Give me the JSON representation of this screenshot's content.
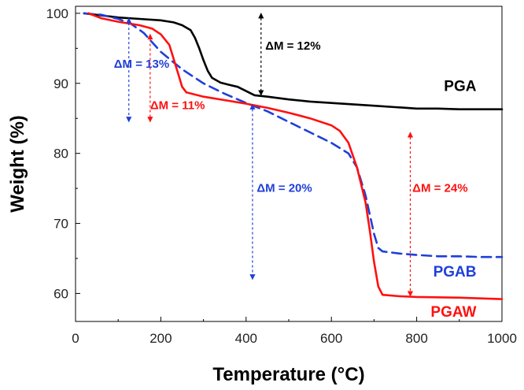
{
  "chart_data": {
    "type": "line",
    "title": "",
    "xlabel": "Temperature (°C)",
    "ylabel": "Weight (%)",
    "xlim": [
      0,
      1000
    ],
    "ylim": [
      56,
      101
    ],
    "x_ticks": [
      0,
      200,
      400,
      600,
      800,
      1000
    ],
    "y_ticks": [
      60,
      70,
      80,
      90,
      100
    ],
    "grid": false,
    "legend": "none",
    "series": [
      {
        "name": "PGA",
        "color": "#000000",
        "dash": "solid",
        "x": [
          20,
          100,
          150,
          200,
          230,
          250,
          270,
          280,
          290,
          300,
          310,
          320,
          340,
          360,
          380,
          400,
          420,
          450,
          500,
          550,
          600,
          650,
          700,
          750,
          800,
          850,
          900,
          950,
          1000
        ],
        "y": [
          100.0,
          99.4,
          99.2,
          99.0,
          98.7,
          98.3,
          97.6,
          96.5,
          95.0,
          93.3,
          91.8,
          90.8,
          90.1,
          89.8,
          89.5,
          88.9,
          88.3,
          88.1,
          87.7,
          87.4,
          87.2,
          87.0,
          86.8,
          86.6,
          86.4,
          86.4,
          86.3,
          86.3,
          86.3
        ]
      },
      {
        "name": "PGAB",
        "color": "#1f3fd9",
        "dash": "dashed",
        "x": [
          20,
          60,
          100,
          130,
          160,
          200,
          250,
          300,
          350,
          400,
          450,
          500,
          550,
          600,
          640,
          660,
          680,
          700,
          710,
          720,
          760,
          800,
          850,
          900,
          950,
          1000
        ],
        "y": [
          100.0,
          99.8,
          99.2,
          98.5,
          97.2,
          94.5,
          92.0,
          90.0,
          88.5,
          87.2,
          86.0,
          84.5,
          83.0,
          81.5,
          80.0,
          78.0,
          74.0,
          68.5,
          66.5,
          66.0,
          65.7,
          65.5,
          65.3,
          65.3,
          65.2,
          65.2
        ]
      },
      {
        "name": "PGAW",
        "color": "#ff1010",
        "dash": "solid",
        "x": [
          30,
          60,
          100,
          150,
          180,
          200,
          220,
          230,
          240,
          250,
          260,
          300,
          350,
          400,
          450,
          500,
          550,
          600,
          620,
          640,
          660,
          680,
          690,
          700,
          710,
          720,
          760,
          800,
          900,
          1000
        ],
        "y": [
          100.0,
          99.3,
          98.8,
          98.3,
          97.8,
          97.0,
          95.5,
          93.5,
          91.5,
          89.5,
          88.7,
          88.1,
          87.6,
          87.1,
          86.5,
          85.8,
          85.0,
          84.0,
          83.2,
          81.5,
          78.0,
          73.0,
          69.0,
          64.5,
          61.0,
          59.8,
          59.6,
          59.5,
          59.4,
          59.2
        ]
      }
    ],
    "series_labels": [
      {
        "series": "PGA",
        "text": "PGA",
        "color": "#000000",
        "x": 940,
        "y": 88.9
      },
      {
        "series": "PGAB",
        "text": "PGAB",
        "color": "#1f3fd9",
        "x": 940,
        "y": 62.4
      },
      {
        "series": "PGAW",
        "text": "PGAW",
        "color": "#ff1010",
        "x": 940,
        "y": 56.7
      }
    ],
    "annotations": [
      {
        "text": "ΔM = 13%",
        "color": "#1f3fd9",
        "text_x": 90,
        "text_y": 92.2,
        "arrow_x": 125,
        "arrow_y1": 99.3,
        "arrow_y2": 84.5
      },
      {
        "text": "ΔM = 11%",
        "color": "#ff1010",
        "text_x": 175,
        "text_y": 86.3,
        "arrow_x": 175,
        "arrow_y1": 97.0,
        "arrow_y2": 84.5
      },
      {
        "text": "ΔM = 12%",
        "color": "#000000",
        "text_x": 445,
        "text_y": 94.8,
        "arrow_x": 435,
        "arrow_y1": 100.0,
        "arrow_y2": 88.3
      },
      {
        "text": "ΔM = 20%",
        "color": "#1f3fd9",
        "text_x": 425,
        "text_y": 74.5,
        "arrow_x": 415,
        "arrow_y1": 87.0,
        "arrow_y2": 62.0
      },
      {
        "text": "ΔM = 24%",
        "color": "#ff1010",
        "text_x": 790,
        "text_y": 74.5,
        "arrow_x": 785,
        "arrow_y1": 83.0,
        "arrow_y2": 59.6
      }
    ]
  }
}
